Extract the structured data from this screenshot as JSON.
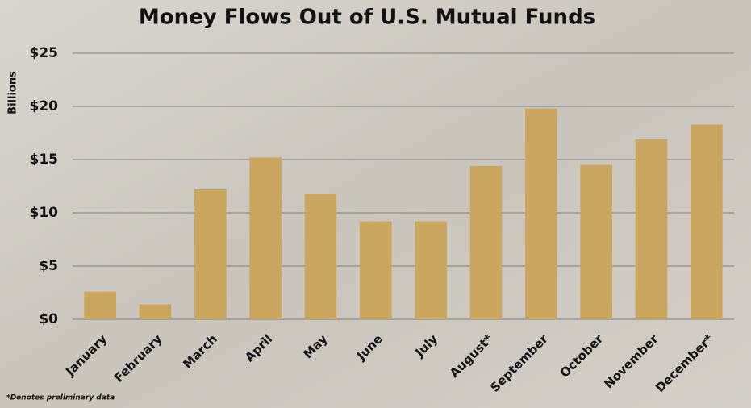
{
  "chart_data": {
    "type": "bar",
    "title": "Money Flows Out of U.S. Mutual Funds",
    "y_label": "Billions",
    "footnote": "*Denotes preliminary data",
    "categories": [
      "January",
      "February",
      "March",
      "April",
      "May",
      "June",
      "July",
      "August*",
      "September",
      "October",
      "November",
      "December*"
    ],
    "values": [
      2.6,
      1.4,
      12.2,
      15.2,
      11.8,
      9.2,
      9.2,
      14.4,
      19.8,
      14.5,
      16.9,
      18.3
    ],
    "color": "#c9a75e",
    "ylim": [
      0,
      25
    ],
    "yticks": [
      {
        "value": 0,
        "label": "$0"
      },
      {
        "value": 5,
        "label": "$5"
      },
      {
        "value": 10,
        "label": "$10"
      },
      {
        "value": 15,
        "label": "$15"
      },
      {
        "value": 20,
        "label": "$20"
      },
      {
        "value": 25,
        "label": "$25"
      }
    ],
    "grid": true
  }
}
